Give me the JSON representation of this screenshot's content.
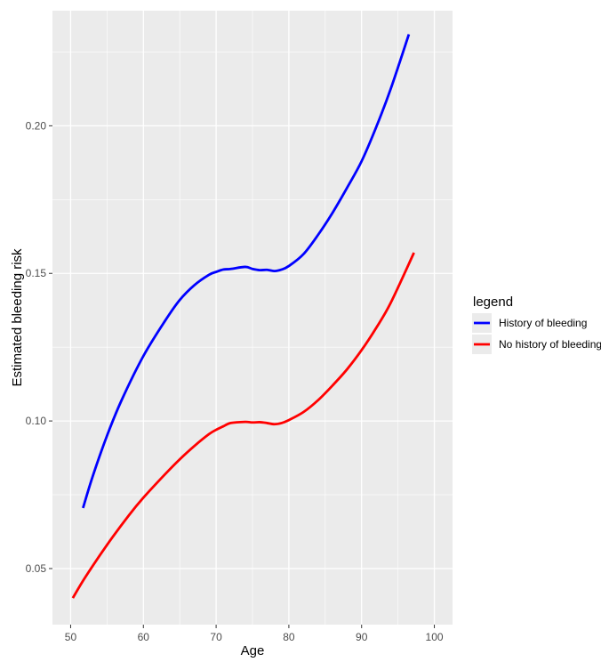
{
  "chart_data": {
    "type": "line",
    "xlabel": "Age",
    "ylabel": "Estimated bleeding risk",
    "xlim": [
      47.5,
      102.5
    ],
    "ylim": [
      0.031,
      0.239
    ],
    "x_ticks": [
      50,
      60,
      70,
      80,
      90,
      100
    ],
    "y_ticks": [
      0.05,
      0.1,
      0.15,
      0.2
    ],
    "x_tick_labels": [
      "50",
      "60",
      "70",
      "80",
      "90",
      "100"
    ],
    "y_tick_labels": [
      "0.05",
      "0.10",
      "0.15",
      "0.20"
    ],
    "grid": true,
    "legend": {
      "title": "legend",
      "placement": "right",
      "entries": [
        "History of bleeding",
        "No history of bleeding"
      ]
    },
    "series": [
      {
        "name": "History of bleeding",
        "color": "#0000ff",
        "x": [
          51.7,
          53,
          55,
          57,
          60,
          63,
          65,
          67,
          69,
          70,
          71,
          72,
          74,
          75,
          76,
          77,
          78,
          79,
          80,
          82,
          84,
          86,
          88,
          90,
          92,
          94,
          96.5
        ],
        "y": [
          0.0705,
          0.081,
          0.095,
          0.107,
          0.122,
          0.134,
          0.141,
          0.146,
          0.1495,
          0.1505,
          0.1513,
          0.1515,
          0.1522,
          0.1515,
          0.1511,
          0.1512,
          0.1508,
          0.1513,
          0.1525,
          0.1565,
          0.163,
          0.1705,
          0.179,
          0.188,
          0.1995,
          0.2125,
          0.231
        ]
      },
      {
        "name": "No history of bleeding",
        "color": "#ff0000",
        "x": [
          50.3,
          52,
          55,
          58,
          60,
          63,
          65,
          67,
          69,
          70,
          71,
          72,
          74,
          75,
          76,
          77,
          78,
          79,
          80,
          82,
          84,
          86,
          88,
          90,
          92,
          94,
          97.2
        ],
        "y": [
          0.04,
          0.047,
          0.058,
          0.068,
          0.074,
          0.082,
          0.087,
          0.0915,
          0.0955,
          0.097,
          0.0982,
          0.0993,
          0.0997,
          0.0995,
          0.0996,
          0.0993,
          0.0989,
          0.0993,
          0.1003,
          0.103,
          0.107,
          0.112,
          0.1175,
          0.124,
          0.1315,
          0.14,
          0.157
        ]
      }
    ]
  }
}
